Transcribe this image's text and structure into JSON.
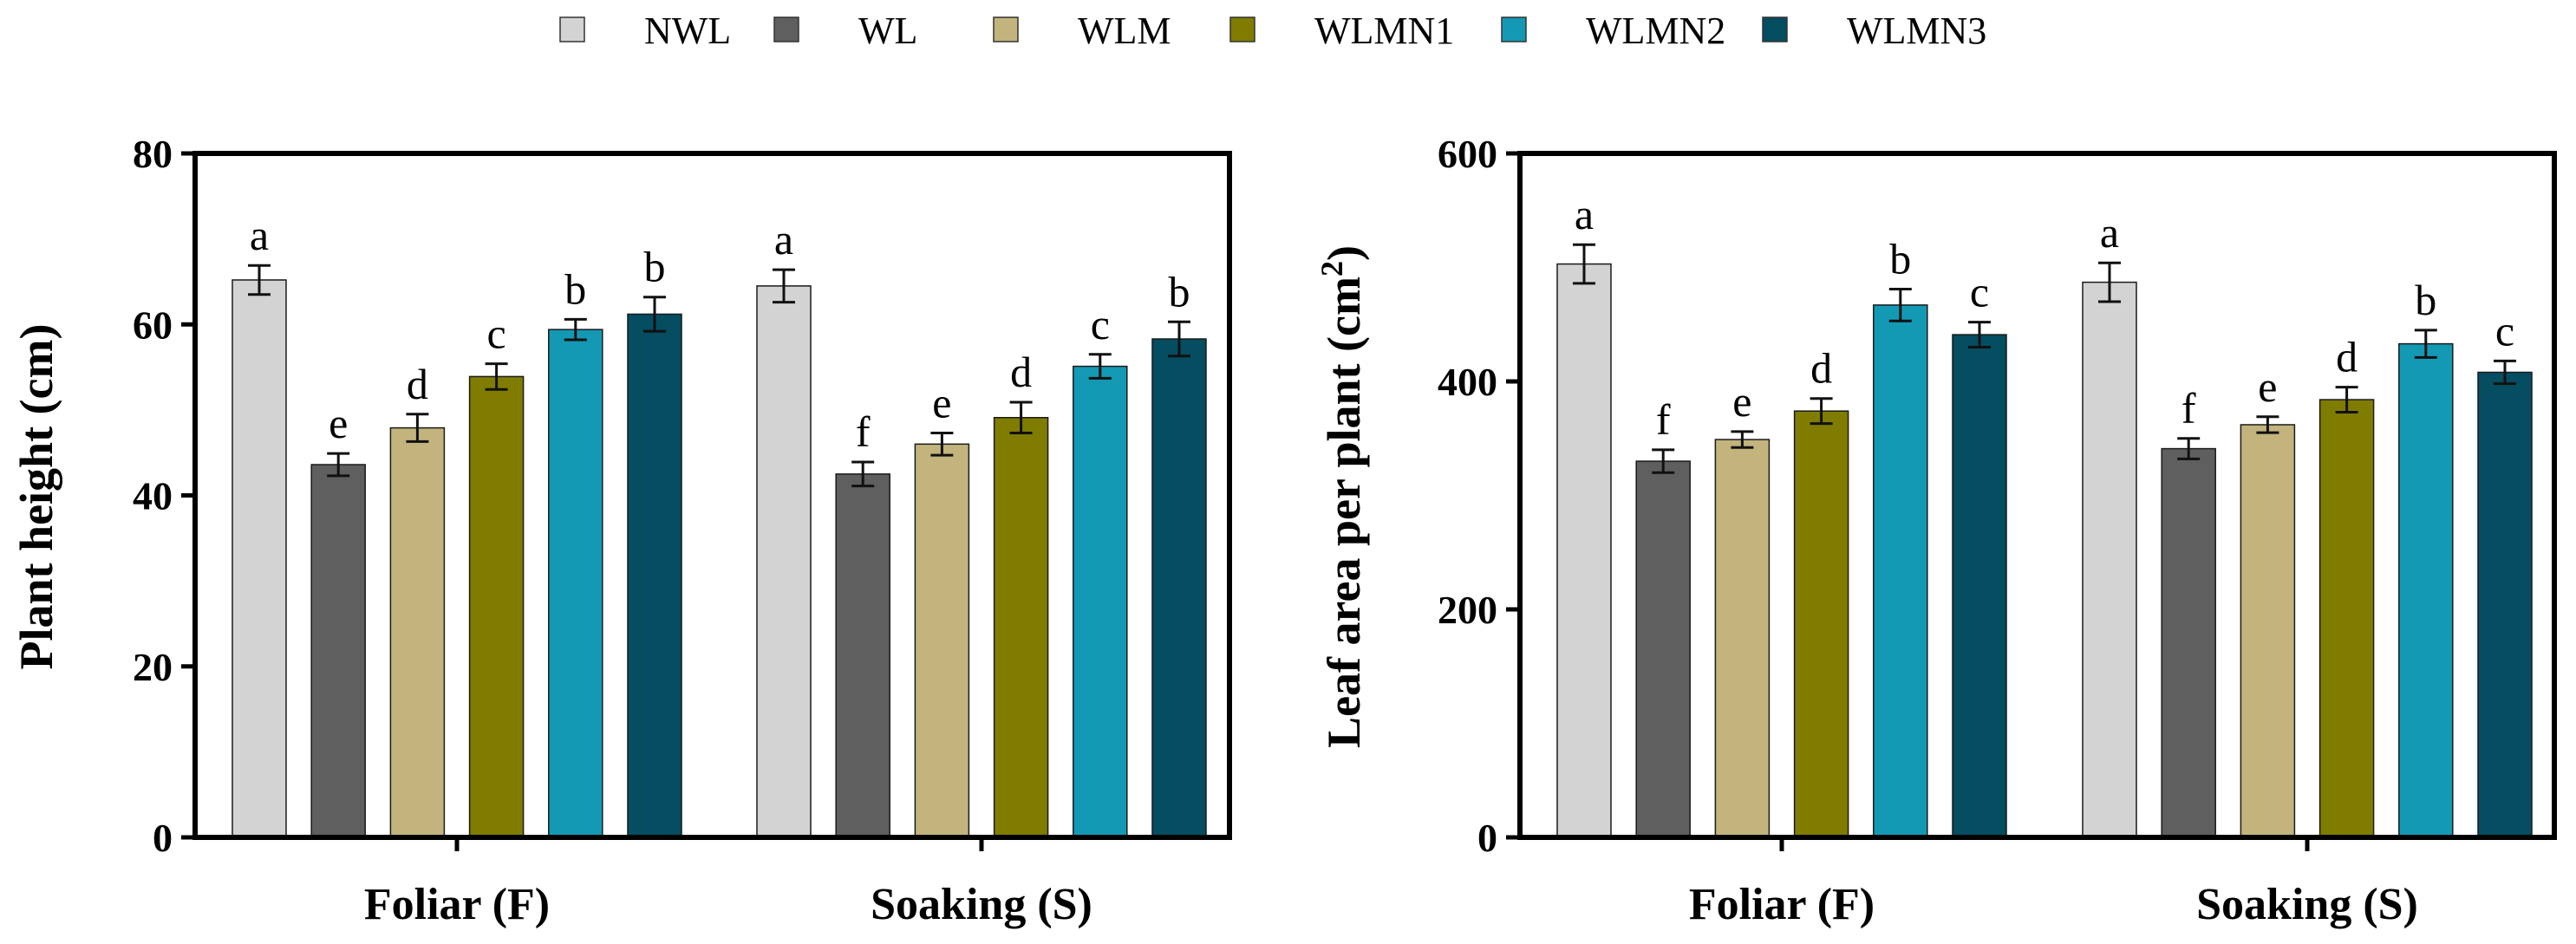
{
  "legend": [
    {
      "name": "NWL",
      "color": "#d3d3d3"
    },
    {
      "name": "WL",
      "color": "#5f5f5f"
    },
    {
      "name": "WLM",
      "color": "#c2b47c"
    },
    {
      "name": "WLMN1",
      "color": "#7f7c00"
    },
    {
      "name": "WLMN2",
      "color": "#1499b4"
    },
    {
      "name": "WLMN3",
      "color": "#054d60"
    }
  ],
  "chart_data": [
    {
      "type": "bar",
      "title": "",
      "xlabel": "",
      "ylabel": "Plant height (cm)",
      "ylim": [
        0,
        80
      ],
      "yticks": [
        0,
        20,
        40,
        60,
        80
      ],
      "categories": [
        "Foliar (F)",
        "Soaking (S)"
      ],
      "series": [
        {
          "name": "NWL",
          "values": [
            65.2,
            64.5
          ],
          "errors": [
            1.7,
            1.9
          ],
          "letters": [
            "a",
            "a"
          ]
        },
        {
          "name": "WL",
          "values": [
            43.6,
            42.5
          ],
          "errors": [
            1.3,
            1.4
          ],
          "letters": [
            "e",
            "f"
          ]
        },
        {
          "name": "WLM",
          "values": [
            47.9,
            46.0
          ],
          "errors": [
            1.6,
            1.3
          ],
          "letters": [
            "d",
            "e"
          ]
        },
        {
          "name": "WLMN1",
          "values": [
            53.9,
            49.1
          ],
          "errors": [
            1.5,
            1.8
          ],
          "letters": [
            "c",
            "d"
          ]
        },
        {
          "name": "WLMN2",
          "values": [
            59.4,
            55.1
          ],
          "errors": [
            1.2,
            1.4
          ],
          "letters": [
            "b",
            "c"
          ]
        },
        {
          "name": "WLMN3",
          "values": [
            61.2,
            58.3
          ],
          "errors": [
            2.0,
            2.0
          ],
          "letters": [
            "b",
            "b"
          ]
        }
      ]
    },
    {
      "type": "bar",
      "title": "",
      "xlabel": "",
      "ylabel": "Leaf area per plant (cm",
      "ylabel_sup": "2",
      "ylabel_end": ")",
      "ylim": [
        0,
        600
      ],
      "yticks": [
        0,
        200,
        400,
        600
      ],
      "categories": [
        "Foliar (F)",
        "Soaking (S)"
      ],
      "series": [
        {
          "name": "NWL",
          "values": [
            503,
            487
          ],
          "errors": [
            17,
            17
          ],
          "letters": [
            "a",
            "a"
          ]
        },
        {
          "name": "WL",
          "values": [
            330,
            341
          ],
          "errors": [
            10,
            9
          ],
          "letters": [
            "f",
            "f"
          ]
        },
        {
          "name": "WLM",
          "values": [
            349,
            362
          ],
          "errors": [
            7,
            7
          ],
          "letters": [
            "e",
            "e"
          ]
        },
        {
          "name": "WLMN1",
          "values": [
            374,
            384
          ],
          "errors": [
            11,
            11
          ],
          "letters": [
            "d",
            "d"
          ]
        },
        {
          "name": "WLMN2",
          "values": [
            467,
            433
          ],
          "errors": [
            14,
            12
          ],
          "letters": [
            "b",
            "b"
          ]
        },
        {
          "name": "WLMN3",
          "values": [
            441,
            408
          ],
          "errors": [
            11,
            10
          ],
          "letters": [
            "c",
            "c"
          ]
        }
      ]
    }
  ]
}
